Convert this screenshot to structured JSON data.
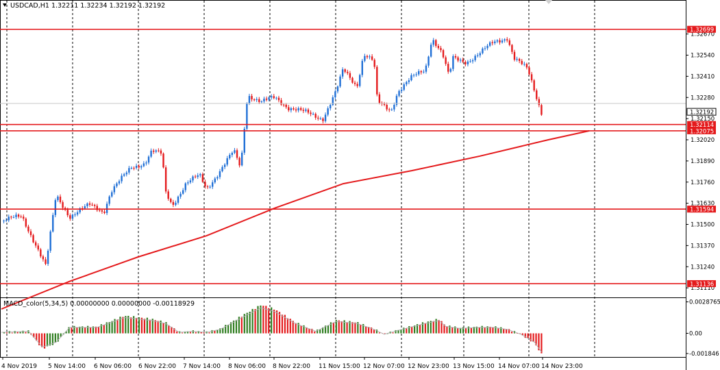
{
  "chart_data": [
    {
      "type": "candlestick",
      "title": "USDCAD,H1  1.32211 1.32234 1.32192 1.32192",
      "ylim": [
        1.3106,
        1.3282
      ],
      "y_ticks": [
        "1.32670",
        "1.32540",
        "1.32410",
        "1.32280",
        "1.32150",
        "1.32020",
        "1.31890",
        "1.31760",
        "1.31630",
        "1.31500",
        "1.31370",
        "1.31240",
        "1.31110"
      ],
      "x_ticks": [
        "4 Nov 2019",
        "5 Nov 14:00",
        "6 Nov 06:00",
        "6 Nov 22:00",
        "7 Nov 14:00",
        "8 Nov 06:00",
        "8 Nov 22:00",
        "11 Nov 15:00",
        "12 Nov 07:00",
        "12 Nov 23:00",
        "13 Nov 15:00",
        "14 Nov 07:00",
        "14 Nov 23:00"
      ],
      "current_price": "1.32192",
      "horizontal_levels": [
        {
          "value": 1.32699,
          "label": "1.32699",
          "color": "#e41a1c"
        },
        {
          "value": 1.32114,
          "label": "1.32114",
          "color": "#e41a1c"
        },
        {
          "value": 1.32075,
          "label": "1.32075",
          "color": "#e41a1c"
        },
        {
          "value": 1.31594,
          "label": "1.31594",
          "color": "#e41a1c"
        },
        {
          "value": 1.31136,
          "label": "1.31136",
          "color": "#e41a1c"
        }
      ],
      "ma_points": [
        [
          0,
          1.3098
        ],
        [
          0.1,
          1.3115
        ],
        [
          0.2,
          1.313
        ],
        [
          0.3,
          1.3143
        ],
        [
          0.4,
          1.316
        ],
        [
          0.5,
          1.3175
        ],
        [
          0.6,
          1.3183
        ],
        [
          0.7,
          1.3192
        ],
        [
          0.8,
          1.3202
        ],
        [
          0.86,
          1.32075
        ]
      ],
      "candle_path": [
        [
          0,
          1.3152
        ],
        [
          0.03,
          1.3155
        ],
        [
          0.05,
          1.3138
        ],
        [
          0.065,
          1.3124
        ],
        [
          0.08,
          1.3168
        ],
        [
          0.1,
          1.3155
        ],
        [
          0.13,
          1.3162
        ],
        [
          0.15,
          1.3158
        ],
        [
          0.16,
          1.317
        ],
        [
          0.19,
          1.3185
        ],
        [
          0.21,
          1.3188
        ],
        [
          0.22,
          1.3195
        ],
        [
          0.235,
          1.3193
        ],
        [
          0.24,
          1.317
        ],
        [
          0.25,
          1.3162
        ],
        [
          0.27,
          1.3175
        ],
        [
          0.29,
          1.318
        ],
        [
          0.3,
          1.3172
        ],
        [
          0.32,
          1.3183
        ],
        [
          0.34,
          1.3195
        ],
        [
          0.35,
          1.3185
        ],
        [
          0.36,
          1.323
        ],
        [
          0.38,
          1.3225
        ],
        [
          0.4,
          1.3228
        ],
        [
          0.42,
          1.3222
        ],
        [
          0.45,
          1.3218
        ],
        [
          0.47,
          1.3215
        ],
        [
          0.49,
          1.3232
        ],
        [
          0.5,
          1.3245
        ],
        [
          0.52,
          1.3235
        ],
        [
          0.53,
          1.3255
        ],
        [
          0.545,
          1.325
        ],
        [
          0.55,
          1.3225
        ],
        [
          0.57,
          1.322
        ],
        [
          0.58,
          1.3232
        ],
        [
          0.6,
          1.324
        ],
        [
          0.62,
          1.3245
        ],
        [
          0.63,
          1.3265
        ],
        [
          0.645,
          1.3255
        ],
        [
          0.655,
          1.324
        ],
        [
          0.66,
          1.3252
        ],
        [
          0.68,
          1.325
        ],
        [
          0.7,
          1.3255
        ],
        [
          0.72,
          1.3262
        ],
        [
          0.74,
          1.3265
        ],
        [
          0.75,
          1.3252
        ],
        [
          0.77,
          1.3245
        ],
        [
          0.78,
          1.3232
        ],
        [
          0.79,
          1.3219
        ]
      ],
      "macd": {
        "label": "MACD_color(5,34,5) 0.00000000 0.00000000 -0.00118929",
        "y_ticks": [
          "0.0028765",
          "0.00",
          "-0.001846"
        ],
        "ylim": [
          -0.0021,
          0.0031
        ],
        "envelope": [
          [
            0,
            0.0001
          ],
          [
            0.04,
            0.0002
          ],
          [
            0.06,
            -0.0014
          ],
          [
            0.08,
            -0.0009
          ],
          [
            0.1,
            0.0006
          ],
          [
            0.14,
            0.0006
          ],
          [
            0.18,
            0.0016
          ],
          [
            0.22,
            0.0013
          ],
          [
            0.24,
            0.001
          ],
          [
            0.26,
            0.0001
          ],
          [
            0.28,
            0.0002
          ],
          [
            0.3,
            0.0001
          ],
          [
            0.32,
            0.0004
          ],
          [
            0.36,
            0.0019
          ],
          [
            0.38,
            0.0026
          ],
          [
            0.4,
            0.0022
          ],
          [
            0.43,
            0.001
          ],
          [
            0.46,
            0.0002
          ],
          [
            0.49,
            0.0012
          ],
          [
            0.52,
            0.001
          ],
          [
            0.545,
            0.0004
          ],
          [
            0.56,
            -0.0001
          ],
          [
            0.58,
            0.0003
          ],
          [
            0.62,
            0.001
          ],
          [
            0.64,
            0.0013
          ],
          [
            0.65,
            0.0007
          ],
          [
            0.67,
            0.0005
          ],
          [
            0.7,
            0.0006
          ],
          [
            0.72,
            0.0006
          ],
          [
            0.74,
            0.0004
          ],
          [
            0.76,
            -0.0001
          ],
          [
            0.78,
            -0.0009
          ],
          [
            0.79,
            -0.0019
          ]
        ]
      }
    }
  ]
}
